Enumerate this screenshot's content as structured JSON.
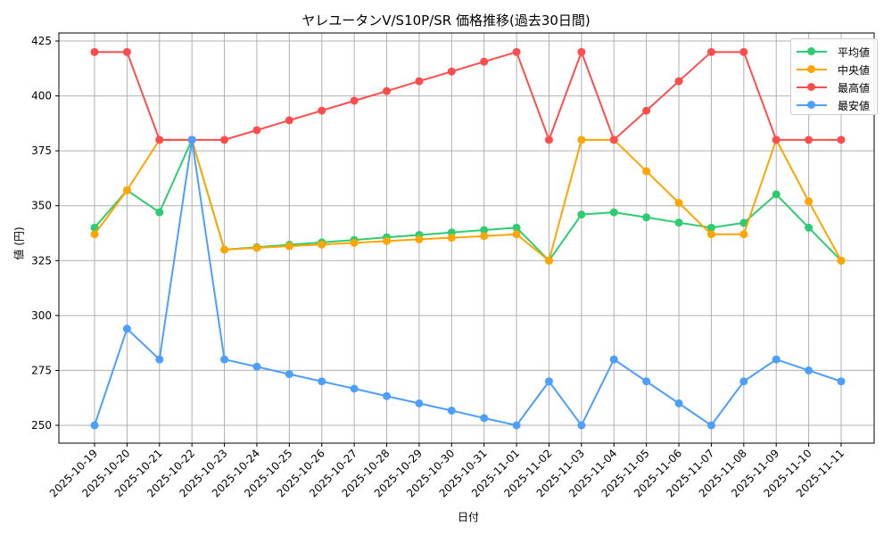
{
  "chart_data": {
    "type": "line",
    "title": "ヤレユータンV/S10P/SR 価格推移(過去30日間)",
    "xlabel": "日付",
    "ylabel": "値 (円)",
    "ylim": [
      242,
      428
    ],
    "yticks": [
      250,
      275,
      300,
      325,
      350,
      375,
      400,
      425
    ],
    "grid": true,
    "legend_position": "upper right",
    "categories": [
      "2025-10-19",
      "2025-10-20",
      "2025-10-21",
      "2025-10-22",
      "2025-10-23",
      "2025-10-24",
      "2025-10-25",
      "2025-10-26",
      "2025-10-27",
      "2025-10-28",
      "2025-10-29",
      "2025-10-30",
      "2025-10-31",
      "2025-11-01",
      "2025-11-02",
      "2025-11-03",
      "2025-11-04",
      "2025-11-05",
      "2025-11-06",
      "2025-11-07",
      "2025-11-08",
      "2025-11-09",
      "2025-11-10",
      "2025-11-11"
    ],
    "series": [
      {
        "name": "平均値",
        "color": "#2ecc71",
        "values": [
          340,
          357,
          347,
          380,
          330,
          331.1,
          332.2,
          333.3,
          334.4,
          335.6,
          336.7,
          337.8,
          338.9,
          340,
          325,
          346,
          347,
          344.7,
          342.3,
          340,
          342.2,
          355.2,
          340,
          325
        ]
      },
      {
        "name": "中央値",
        "color": "#ffa500",
        "values": [
          337,
          357,
          380,
          380,
          330,
          330.8,
          331.6,
          332.3,
          333.1,
          333.9,
          334.7,
          335.4,
          336.2,
          337,
          325,
          380,
          380,
          365.7,
          351.3,
          337,
          337,
          380,
          352,
          325
        ]
      },
      {
        "name": "最高値",
        "color": "#ff4d4d",
        "values": [
          420,
          420,
          380,
          380,
          380,
          384.4,
          388.9,
          393.3,
          397.8,
          402.2,
          406.7,
          411.1,
          415.6,
          420,
          380,
          420,
          380,
          393.3,
          406.7,
          420,
          420,
          380,
          380,
          380
        ]
      },
      {
        "name": "最安値",
        "color": "#4d9fff",
        "values": [
          250,
          294,
          280,
          380,
          280,
          276.7,
          273.3,
          270,
          266.7,
          263.3,
          260,
          256.7,
          253.3,
          250,
          270,
          250,
          280,
          270,
          260,
          250,
          270,
          280,
          275,
          270
        ]
      }
    ]
  }
}
